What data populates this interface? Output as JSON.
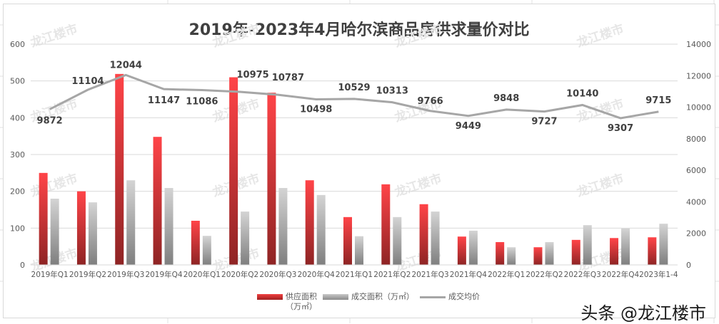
{
  "chart_title": "2019年-2023年4月哈尔滨商品房供求量价对比",
  "legend": {
    "supply_label": "供应面积",
    "supply_unit": "（万㎡）",
    "sales_label": "成交面积（万㎡）",
    "price_label": "成交均价"
  },
  "attribution": "头条 @龙江楼市",
  "watermark": "龙江楼市",
  "colors": {
    "supply": "#e8363c",
    "sales": "#b0b0b0",
    "price_line": "#a6a6a6"
  },
  "chart_data": {
    "type": "bar",
    "title": "2019年-2023年4月哈尔滨商品房供求量价对比",
    "categories": [
      "2019年Q1",
      "2019年Q2",
      "2019年Q3",
      "2019年Q4",
      "2020年Q1",
      "2020年Q2",
      "2020年Q3",
      "2020年Q4",
      "2021年Q1",
      "2021年Q2",
      "2021年Q3",
      "2021年Q4",
      "2022年Q1",
      "2022年Q2",
      "2022年Q3",
      "2022年Q4",
      "2023年1-4"
    ],
    "series": [
      {
        "name": "供应面积（万㎡）",
        "type": "bar",
        "axis": "left",
        "values": [
          250,
          200,
          519,
          348,
          120,
          510,
          468,
          230,
          130,
          219,
          165,
          77,
          62,
          48,
          68,
          73,
          75
        ]
      },
      {
        "name": "成交面积（万㎡）",
        "type": "bar",
        "axis": "left",
        "values": [
          180,
          170,
          230,
          209,
          79,
          145,
          209,
          190,
          78,
          130,
          145,
          93,
          48,
          62,
          108,
          99,
          112
        ]
      },
      {
        "name": "成交均价",
        "type": "line",
        "axis": "right",
        "values": [
          9872,
          11104,
          12044,
          11147,
          11086,
          10975,
          10787,
          10498,
          10529,
          10313,
          9766,
          9449,
          9848,
          9727,
          10140,
          9307,
          9715
        ]
      }
    ],
    "ylabel_left": "",
    "ylabel_right": "",
    "ylim_left": [
      0,
      600
    ],
    "yticks_left": [
      0,
      100,
      200,
      300,
      400,
      500,
      600
    ],
    "ylim_right": [
      0,
      14000
    ],
    "yticks_right": [
      0,
      2000,
      4000,
      6000,
      8000,
      10000,
      12000,
      14000
    ],
    "grid": true,
    "legend_position": "bottom"
  }
}
